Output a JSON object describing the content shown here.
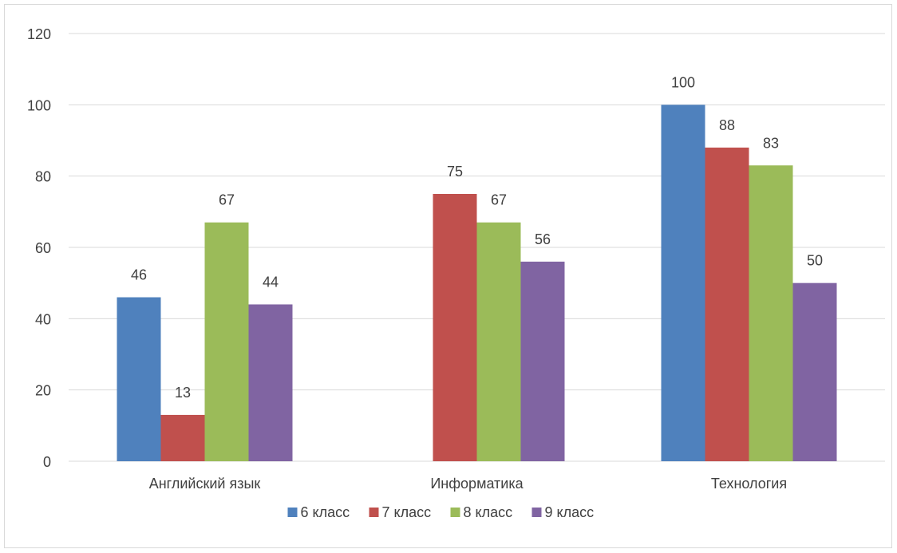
{
  "chart_data": {
    "type": "bar",
    "categories": [
      "Английский язык",
      "Информатика",
      "Технология"
    ],
    "series": [
      {
        "name": "6 класс",
        "values": [
          46,
          null,
          100
        ],
        "color": "#4f81bd"
      },
      {
        "name": "7 класс",
        "values": [
          13,
          75,
          88
        ],
        "color": "#c0504d"
      },
      {
        "name": "8 класс",
        "values": [
          67,
          67,
          83
        ],
        "color": "#9bbb59"
      },
      {
        "name": "9 класс",
        "values": [
          44,
          56,
          50
        ],
        "color": "#8064a2"
      }
    ],
    "ylim": [
      0,
      120
    ],
    "yticks": [
      0,
      20,
      40,
      60,
      80,
      100,
      120
    ],
    "grid": true,
    "legend_position": "bottom",
    "data_labels": true
  }
}
